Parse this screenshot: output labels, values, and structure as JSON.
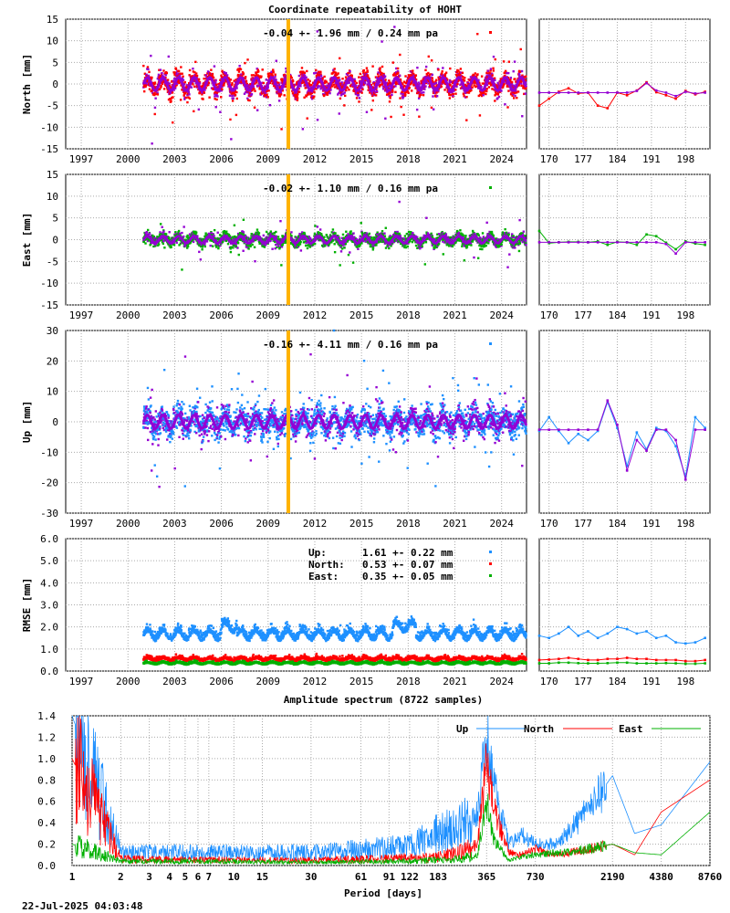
{
  "figure": {
    "title": "Coordinate repeatability of HOHT",
    "timestamp": "22-Jul-2025 04:03:48",
    "event_line_color": "#ffb300"
  },
  "ts_x_ticks": [
    "1997",
    "2000",
    "2003",
    "2006",
    "2009",
    "2012",
    "2015",
    "2018",
    "2021",
    "2024"
  ],
  "ts_x_range": [
    1996.0,
    2025.6
  ],
  "ts_data_start": 2001.0,
  "event_year": 2010.3,
  "zoom_x_ticks": [
    "170",
    "177",
    "184",
    "191",
    "198"
  ],
  "zoom_x_range": [
    168,
    203
  ],
  "panels": [
    {
      "ylabel": "North [mm]",
      "ylim": [
        -15,
        15
      ],
      "yticks": [
        "-15",
        "-10",
        "-5",
        "0",
        "5",
        "10",
        "15"
      ],
      "annotation": "-0.04 +- 1.96 mm /  0.24 mm pa",
      "marker_color": "#ff0000",
      "model_color": "#9400d3",
      "scatter_sigma": 1.96,
      "model_amplitude": 1.5,
      "zoom_series": [
        {
          "name": "data",
          "color": "#ff0000",
          "x": [
            168,
            170,
            172,
            174,
            176,
            178,
            180,
            182,
            184,
            186,
            188,
            190,
            192,
            194,
            196,
            198,
            200,
            202
          ],
          "y": [
            -5.0,
            -3.4,
            -1.8,
            -1.0,
            -2.2,
            -2.0,
            -5.0,
            -5.6,
            -2.0,
            -2.6,
            -1.5,
            0.4,
            -1.9,
            -2.6,
            -3.4,
            -1.6,
            -2.4,
            -1.8
          ]
        },
        {
          "name": "model",
          "color": "#9400d3",
          "x": [
            168,
            170,
            172,
            174,
            176,
            178,
            180,
            182,
            184,
            186,
            188,
            190,
            192,
            194,
            196,
            198,
            200,
            202
          ],
          "y": [
            -2.0,
            -2.0,
            -2.0,
            -2.0,
            -2.0,
            -2.0,
            -2.0,
            -2.0,
            -2.0,
            -2.0,
            -1.6,
            0.2,
            -1.5,
            -2.0,
            -2.8,
            -1.8,
            -2.2,
            -2.0
          ]
        }
      ]
    },
    {
      "ylabel": "East [mm]",
      "ylim": [
        -15,
        15
      ],
      "yticks": [
        "-15",
        "-10",
        "-5",
        "0",
        "5",
        "10",
        "15"
      ],
      "annotation": "-0.02 +- 1.10 mm /  0.16 mm pa",
      "marker_color": "#00b000",
      "model_color": "#9400d3",
      "scatter_sigma": 1.1,
      "model_amplitude": 0.8,
      "zoom_series": [
        {
          "name": "data",
          "color": "#00b000",
          "x": [
            168,
            170,
            172,
            174,
            176,
            178,
            180,
            182,
            184,
            186,
            188,
            190,
            192,
            194,
            196,
            198,
            200,
            202
          ],
          "y": [
            2.0,
            -0.8,
            -0.6,
            -0.5,
            -0.5,
            -0.6,
            -0.4,
            -1.2,
            -0.5,
            -0.6,
            -1.2,
            1.2,
            0.8,
            -0.7,
            -2.2,
            -0.4,
            -0.9,
            -1.2
          ]
        },
        {
          "name": "model",
          "color": "#9400d3",
          "x": [
            168,
            170,
            172,
            174,
            176,
            178,
            180,
            182,
            184,
            186,
            188,
            190,
            192,
            194,
            196,
            198,
            200,
            202
          ],
          "y": [
            -0.6,
            -0.6,
            -0.6,
            -0.6,
            -0.6,
            -0.6,
            -0.6,
            -0.6,
            -0.6,
            -0.6,
            -0.6,
            -0.6,
            -0.6,
            -1.0,
            -3.2,
            -0.6,
            -0.6,
            -0.6
          ]
        }
      ]
    },
    {
      "ylabel": "Up [mm]",
      "ylim": [
        -30,
        30
      ],
      "yticks": [
        "-30",
        "-20",
        "-10",
        "0",
        "10",
        "20",
        "30"
      ],
      "annotation": "-0.16 +- 4.11 mm /  0.16 mm pa",
      "marker_color": "#1e90ff",
      "model_color": "#9400d3",
      "scatter_sigma": 4.11,
      "model_amplitude": 2.2,
      "zoom_series": [
        {
          "name": "data",
          "color": "#1e90ff",
          "x": [
            168,
            170,
            172,
            174,
            176,
            178,
            180,
            182,
            184,
            186,
            188,
            190,
            192,
            194,
            196,
            198,
            200,
            202
          ],
          "y": [
            -3.0,
            1.5,
            -3.0,
            -7.0,
            -4.0,
            -6.0,
            -3.0,
            6.5,
            -2.0,
            -14.5,
            -3.5,
            -9.0,
            -2.0,
            -3.0,
            -8.0,
            -18.0,
            1.5,
            -2.0
          ]
        },
        {
          "name": "model",
          "color": "#9400d3",
          "x": [
            168,
            170,
            172,
            174,
            176,
            178,
            180,
            182,
            184,
            186,
            188,
            190,
            192,
            194,
            196,
            198,
            200,
            202
          ],
          "y": [
            -2.6,
            -2.6,
            -2.6,
            -2.6,
            -2.6,
            -2.6,
            -2.6,
            7.0,
            -1.0,
            -16.0,
            -6.0,
            -9.5,
            -2.6,
            -2.6,
            -6.0,
            -19.0,
            -2.6,
            -2.6
          ]
        }
      ]
    },
    {
      "ylabel": "RMSE [mm]",
      "ylim": [
        0,
        6
      ],
      "yticks": [
        "0.0",
        "1.0",
        "2.0",
        "3.0",
        "4.0",
        "5.0",
        "6.0"
      ],
      "legend": [
        {
          "label": "Up:",
          "value": "1.61 +- 0.22 mm",
          "color": "#1e90ff"
        },
        {
          "label": "North:",
          "value": "0.53 +- 0.07 mm",
          "color": "#ff0000"
        },
        {
          "label": "East:",
          "value": "0.35 +- 0.05 mm",
          "color": "#00b000"
        }
      ],
      "zoom_series": [
        {
          "name": "Up",
          "color": "#1e90ff",
          "x": [
            168,
            170,
            172,
            174,
            176,
            178,
            180,
            182,
            184,
            186,
            188,
            190,
            192,
            194,
            196,
            198,
            200,
            202
          ],
          "y": [
            1.6,
            1.5,
            1.7,
            2.0,
            1.6,
            1.8,
            1.5,
            1.7,
            2.0,
            1.9,
            1.7,
            1.8,
            1.5,
            1.6,
            1.3,
            1.25,
            1.3,
            1.5
          ]
        },
        {
          "name": "North",
          "color": "#ff0000",
          "x": [
            168,
            170,
            172,
            174,
            176,
            178,
            180,
            182,
            184,
            186,
            188,
            190,
            192,
            194,
            196,
            198,
            200,
            202
          ],
          "y": [
            0.5,
            0.52,
            0.55,
            0.6,
            0.55,
            0.5,
            0.5,
            0.55,
            0.55,
            0.6,
            0.55,
            0.55,
            0.5,
            0.5,
            0.5,
            0.45,
            0.45,
            0.5
          ]
        },
        {
          "name": "East",
          "color": "#00b000",
          "x": [
            168,
            170,
            172,
            174,
            176,
            178,
            180,
            182,
            184,
            186,
            188,
            190,
            192,
            194,
            196,
            198,
            200,
            202
          ],
          "y": [
            0.35,
            0.35,
            0.38,
            0.38,
            0.36,
            0.35,
            0.35,
            0.36,
            0.38,
            0.38,
            0.35,
            0.35,
            0.35,
            0.36,
            0.35,
            0.33,
            0.33,
            0.35
          ]
        }
      ]
    }
  ],
  "spectrum": {
    "title": "Amplitude spectrum (8722 samples)",
    "xlabel": "Period [days]",
    "ylim": [
      0,
      1.4
    ],
    "yticks": [
      "0.0",
      "0.2",
      "0.4",
      "0.6",
      "0.8",
      "1.0",
      "1.2",
      "1.4"
    ],
    "xticks": [
      {
        "label": "1",
        "period": 1
      },
      {
        "label": "2",
        "period": 2
      },
      {
        "label": "3",
        "period": 3
      },
      {
        "label": "4",
        "period": 4
      },
      {
        "label": "5",
        "period": 5
      },
      {
        "label": "6",
        "period": 6
      },
      {
        "label": "7",
        "period": 7
      },
      {
        "label": "10",
        "period": 10
      },
      {
        "label": "15",
        "period": 15
      },
      {
        "label": "30",
        "period": 30
      },
      {
        "label": "61",
        "period": 61
      },
      {
        "label": "91",
        "period": 91
      },
      {
        "label": "122",
        "period": 122
      },
      {
        "label": "183",
        "period": 183
      },
      {
        "label": "365",
        "period": 365
      },
      {
        "label": "730",
        "period": 730
      },
      {
        "label": "2190",
        "period": 2190
      },
      {
        "label": "4380",
        "period": 4380
      },
      {
        "label": "8760",
        "period": 8760
      }
    ],
    "legend": [
      {
        "label": "Up",
        "color": "#1e90ff"
      },
      {
        "label": "North",
        "color": "#ff0000"
      },
      {
        "label": "East",
        "color": "#00b000"
      }
    ]
  },
  "chart_data": {
    "type": "line",
    "title": "Amplitude spectrum (8722 samples)",
    "xlabel": "Period [days]",
    "ylabel": "",
    "ylim": [
      0,
      1.4
    ],
    "x_scale": "log",
    "series": [
      {
        "name": "Up",
        "color": "#1e90ff",
        "x": [
          1,
          2,
          5,
          30,
          120,
          183,
          250,
          320,
          365,
          400,
          500,
          600,
          730,
          1000,
          1500,
          2190,
          3000,
          4380,
          8760
        ],
        "y": [
          1.4,
          0.12,
          0.12,
          0.12,
          0.18,
          0.3,
          0.35,
          0.5,
          1.22,
          0.8,
          0.2,
          0.3,
          0.2,
          0.2,
          0.5,
          0.84,
          0.3,
          0.38,
          0.97
        ]
      },
      {
        "name": "North",
        "color": "#ff0000",
        "x": [
          1,
          2,
          5,
          30,
          120,
          183,
          250,
          320,
          365,
          400,
          500,
          600,
          730,
          1000,
          1500,
          2190,
          3000,
          4380,
          8760
        ],
        "y": [
          1.0,
          0.06,
          0.05,
          0.05,
          0.07,
          0.08,
          0.12,
          0.2,
          1.0,
          0.55,
          0.12,
          0.1,
          0.15,
          0.1,
          0.15,
          0.2,
          0.1,
          0.5,
          0.8
        ]
      },
      {
        "name": "East",
        "color": "#00b000",
        "x": [
          1,
          2,
          5,
          30,
          120,
          183,
          250,
          320,
          365,
          400,
          500,
          600,
          730,
          1000,
          1500,
          2190,
          3000,
          4380,
          8760
        ],
        "y": [
          0.2,
          0.04,
          0.04,
          0.03,
          0.04,
          0.05,
          0.06,
          0.1,
          0.6,
          0.25,
          0.05,
          0.08,
          0.1,
          0.12,
          0.15,
          0.2,
          0.12,
          0.1,
          0.5
        ]
      }
    ]
  }
}
